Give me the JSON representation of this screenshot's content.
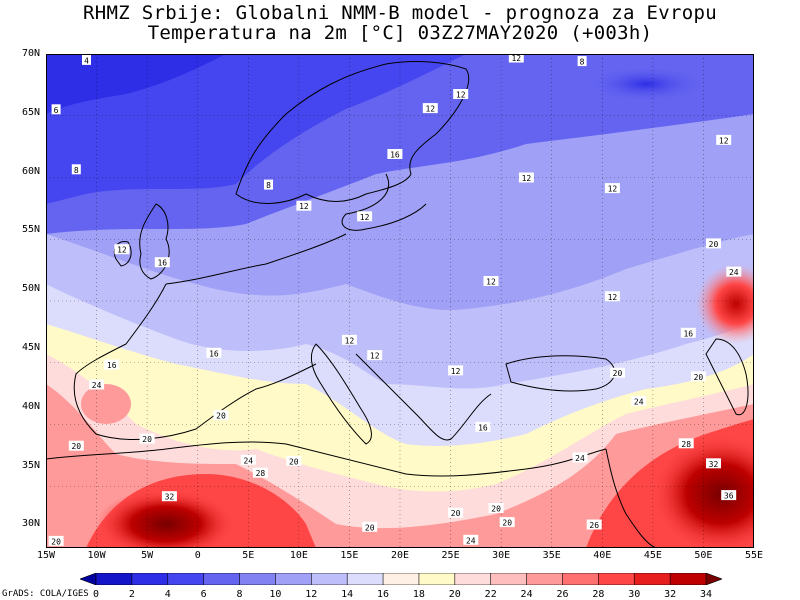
{
  "title": {
    "line1": "RHMZ Srbije: Globalni NMM-B model - prognoza za Evropu",
    "line2": "Temperatura na 2m [°C] 03Z27MAY2020 (+003h)"
  },
  "lat_axis": [
    "70N",
    "65N",
    "60N",
    "55N",
    "50N",
    "45N",
    "40N",
    "35N",
    "30N"
  ],
  "lon_axis": [
    "15W",
    "10W",
    "5W",
    "0",
    "5E",
    "10E",
    "15E",
    "20E",
    "25E",
    "30E",
    "35E",
    "40E",
    "45E",
    "50E",
    "55E"
  ],
  "contour_labels": [
    {
      "text": "4",
      "x": -11,
      "y": 69.5
    },
    {
      "text": "6",
      "x": -14,
      "y": 65.3
    },
    {
      "text": "8",
      "x": -12,
      "y": 60.2
    },
    {
      "text": "8",
      "x": 7,
      "y": 58.9
    },
    {
      "text": "12",
      "x": 10.5,
      "y": 57.1
    },
    {
      "text": "12",
      "x": 16.5,
      "y": 56.2
    },
    {
      "text": "12",
      "x": -7.5,
      "y": 53.4
    },
    {
      "text": "16",
      "x": -3.5,
      "y": 52.3
    },
    {
      "text": "6",
      "x": -17.5,
      "y": 46.3
    },
    {
      "text": "16",
      "x": -8.5,
      "y": 43.6
    },
    {
      "text": "16",
      "x": 1.6,
      "y": 44.6
    },
    {
      "text": "12",
      "x": 31.5,
      "y": 69.7
    },
    {
      "text": "8",
      "x": 38,
      "y": 69.4
    },
    {
      "text": "12",
      "x": 26,
      "y": 66.6
    },
    {
      "text": "12",
      "x": 23,
      "y": 65.4
    },
    {
      "text": "16",
      "x": 19.5,
      "y": 61.5
    },
    {
      "text": "12",
      "x": 52,
      "y": 62.7
    },
    {
      "text": "12",
      "x": 32.5,
      "y": 59.5
    },
    {
      "text": "12",
      "x": 41,
      "y": 58.6
    },
    {
      "text": "12",
      "x": 29,
      "y": 50.7
    },
    {
      "text": "12",
      "x": 41,
      "y": 49.4
    },
    {
      "text": "12",
      "x": 15,
      "y": 45.7
    },
    {
      "text": "12",
      "x": 17.5,
      "y": 44.4
    },
    {
      "text": "12",
      "x": 25.5,
      "y": 43.1
    },
    {
      "text": "16",
      "x": 28.2,
      "y": 38.3
    },
    {
      "text": "16",
      "x": 48.5,
      "y": 46.3
    },
    {
      "text": "20",
      "x": 51,
      "y": 53.9
    },
    {
      "text": "24",
      "x": 53,
      "y": 51.5
    },
    {
      "text": "20",
      "x": 41.5,
      "y": 42.9
    },
    {
      "text": "20",
      "x": 49.5,
      "y": 42.6
    },
    {
      "text": "24",
      "x": -10,
      "y": 41.9
    },
    {
      "text": "20",
      "x": -12,
      "y": 36.7
    },
    {
      "text": "20",
      "x": 2.3,
      "y": 39.3
    },
    {
      "text": "20",
      "x": -5,
      "y": 37.3
    },
    {
      "text": "24",
      "x": 5,
      "y": 35.5
    },
    {
      "text": "20",
      "x": 9.5,
      "y": 35.4
    },
    {
      "text": "28",
      "x": 6.2,
      "y": 34.4
    },
    {
      "text": "24",
      "x": 43.6,
      "y": 40.5
    },
    {
      "text": "24",
      "x": 37.8,
      "y": 35.7
    },
    {
      "text": "28",
      "x": 48.3,
      "y": 36.9
    },
    {
      "text": "32",
      "x": 51,
      "y": 35.2
    },
    {
      "text": "36",
      "x": 52.5,
      "y": 32.5
    },
    {
      "text": "32",
      "x": -2.8,
      "y": 32.4
    },
    {
      "text": "20",
      "x": -14,
      "y": 28.6
    },
    {
      "text": "20",
      "x": 29.5,
      "y": 31.4
    },
    {
      "text": "20",
      "x": 17,
      "y": 29.8
    },
    {
      "text": "20",
      "x": 25.5,
      "y": 31
    },
    {
      "text": "20",
      "x": 30.6,
      "y": 30.2
    },
    {
      "text": "26",
      "x": 39.2,
      "y": 30
    },
    {
      "text": "24",
      "x": 27,
      "y": 28.7
    }
  ],
  "colorbar": {
    "labels": [
      "0",
      "2",
      "4",
      "6",
      "8",
      "10",
      "12",
      "14",
      "16",
      "18",
      "20",
      "22",
      "24",
      "26",
      "28",
      "30",
      "32",
      "34"
    ],
    "colors": [
      "#0000a0",
      "#1414c8",
      "#2e2ee6",
      "#4646f0",
      "#6464f0",
      "#8282f2",
      "#a0a0f6",
      "#bebefa",
      "#dcdcfc",
      "#fff0e6",
      "#fffac8",
      "#ffdcdc",
      "#ffbebe",
      "#ff9a9a",
      "#ff7070",
      "#ff4646",
      "#e61e1e",
      "#be0000",
      "#780000"
    ]
  },
  "credit": "GrADS: COLA/IGES"
}
